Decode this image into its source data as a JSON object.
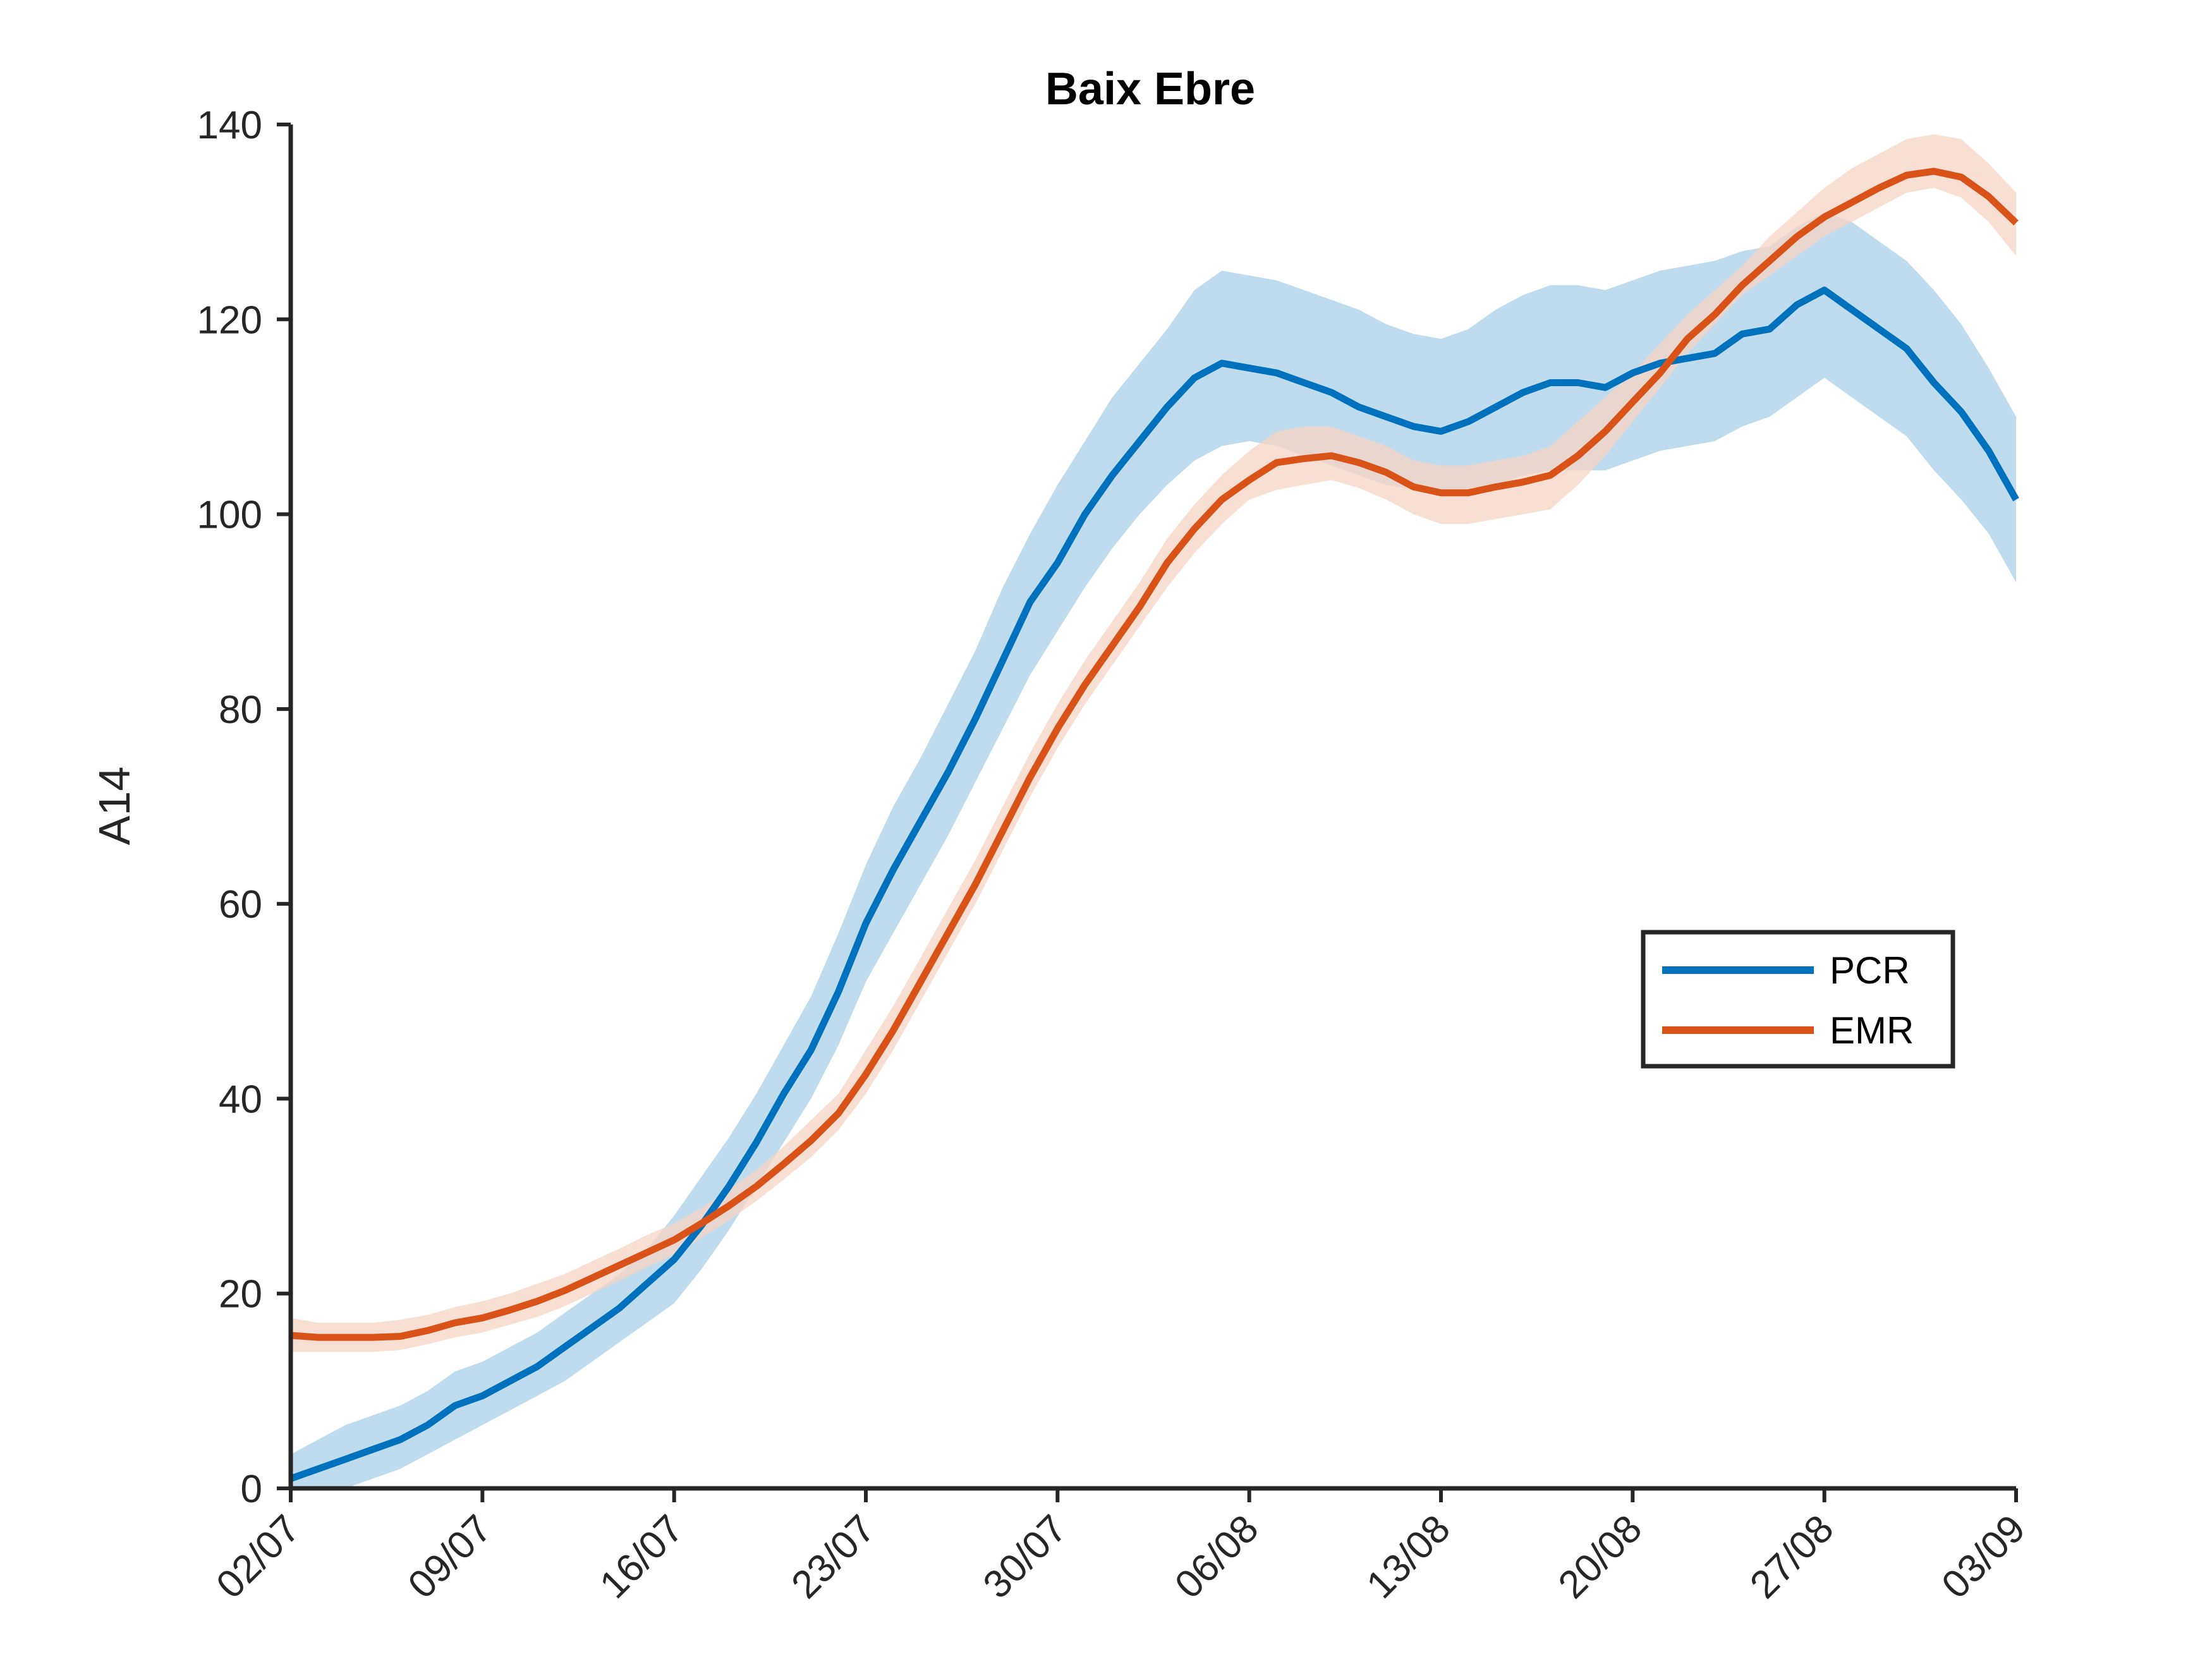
{
  "chart_data": {
    "type": "line",
    "title": "Baix Ebre",
    "xlabel": "",
    "ylabel": "A14",
    "x_tick_labels": [
      "02/07",
      "09/07",
      "16/07",
      "23/07",
      "30/07",
      "06/08",
      "13/08",
      "20/08",
      "27/08",
      "03/09"
    ],
    "x_ticks_day_offsets": [
      0,
      7,
      14,
      21,
      28,
      35,
      42,
      49,
      56,
      63
    ],
    "ylim": [
      0,
      140
    ],
    "y_ticks": [
      0,
      20,
      40,
      60,
      80,
      100,
      120,
      140
    ],
    "grid": false,
    "legend_position": "right",
    "series": [
      {
        "name": "PCR",
        "color": "#0072BD",
        "band_color": "#BCDAEE",
        "x": [
          0,
          1,
          2,
          3,
          4,
          5,
          6,
          7,
          8,
          9,
          10,
          11,
          12,
          13,
          14,
          15,
          16,
          17,
          18,
          19,
          20,
          21,
          22,
          23,
          24,
          25,
          26,
          27,
          28,
          29,
          30,
          31,
          32,
          33,
          34,
          35,
          36,
          37,
          38,
          39,
          40,
          41,
          42,
          43,
          44,
          45,
          46,
          47,
          48,
          49,
          50,
          51,
          52,
          53,
          54,
          55,
          56,
          57,
          58,
          59,
          60,
          61,
          62,
          63
        ],
        "values": [
          1,
          2,
          3,
          4,
          5,
          6.5,
          8.5,
          9.5,
          11,
          12.5,
          14.5,
          16.5,
          18.5,
          21,
          23.5,
          27,
          31,
          35.5,
          40.5,
          45,
          51,
          58,
          63.5,
          68.5,
          73.5,
          79,
          85,
          91,
          95,
          100,
          104,
          107.5,
          111,
          114,
          115.5,
          115,
          114.5,
          113.5,
          112.5,
          111,
          110,
          109,
          108.5,
          109.5,
          111,
          112.5,
          113.5,
          113.5,
          113,
          114.5,
          115.5,
          116,
          116.5,
          118.5,
          119,
          121.5,
          123,
          121,
          119,
          117,
          113.5,
          110.5,
          106.5,
          101.5
        ],
        "lower": [
          -1,
          -0.5,
          0,
          1,
          2,
          3.5,
          5,
          6.5,
          8,
          9.5,
          11,
          13,
          15,
          17,
          19,
          22.5,
          26.5,
          31,
          35.5,
          40,
          45.5,
          52,
          57,
          62,
          67,
          72.5,
          78,
          83.5,
          88,
          92.5,
          96.5,
          100,
          103,
          105.5,
          107,
          107.5,
          107,
          106,
          105,
          104,
          103,
          102.5,
          102,
          102,
          103,
          104,
          104.5,
          104.5,
          104.5,
          105.5,
          106.5,
          107,
          107.5,
          109,
          110,
          112,
          114,
          112,
          110,
          108,
          104.5,
          101.5,
          98,
          93
        ],
        "upper": [
          3.5,
          5,
          6.5,
          7.5,
          8.5,
          10,
          12,
          13,
          14.5,
          16,
          18,
          20,
          22,
          24.5,
          28,
          32,
          36,
          40.5,
          45.5,
          50.5,
          57,
          64,
          70,
          75,
          80.5,
          86,
          92.5,
          98,
          103,
          107.5,
          112,
          115.5,
          119,
          123,
          125,
          124.5,
          124,
          123,
          122,
          121,
          119.5,
          118.5,
          118,
          119,
          121,
          122.5,
          123.5,
          123.5,
          123,
          124,
          125,
          125.5,
          126,
          127,
          127.5,
          129.5,
          131,
          130,
          128,
          126,
          123,
          119.5,
          115,
          110
        ]
      },
      {
        "name": "EMR",
        "color": "#D95319",
        "band_color": "#F6D4C4",
        "x": [
          0,
          1,
          2,
          3,
          4,
          5,
          6,
          7,
          8,
          9,
          10,
          11,
          12,
          13,
          14,
          15,
          16,
          17,
          18,
          19,
          20,
          21,
          22,
          23,
          24,
          25,
          26,
          27,
          28,
          29,
          30,
          31,
          32,
          33,
          34,
          35,
          36,
          37,
          38,
          39,
          40,
          41,
          42,
          43,
          44,
          45,
          46,
          47,
          48,
          49,
          50,
          51,
          52,
          53,
          54,
          55,
          56,
          57,
          58,
          59,
          60,
          61,
          62,
          63
        ],
        "values": [
          15.7,
          15.5,
          15.5,
          15.5,
          15.6,
          16.2,
          17,
          17.5,
          18.3,
          19.2,
          20.3,
          21.6,
          22.9,
          24.2,
          25.5,
          27.2,
          29,
          31,
          33.3,
          35.7,
          38.5,
          42.5,
          47,
          52,
          57,
          62,
          67.5,
          73,
          78,
          82.5,
          86.5,
          90.5,
          95,
          98.5,
          101.5,
          103.5,
          105.3,
          105.7,
          106,
          105.3,
          104.3,
          102.8,
          102.2,
          102.2,
          102.8,
          103.3,
          104,
          106,
          108.5,
          111.5,
          114.5,
          118,
          120.5,
          123.5,
          126,
          128.5,
          130.5,
          132,
          133.5,
          134.8,
          135.2,
          134.6,
          132.6,
          129.9
        ],
        "lower": [
          14,
          14,
          14,
          14,
          14.2,
          14.8,
          15.5,
          16,
          16.8,
          17.6,
          18.7,
          20,
          21.3,
          22.7,
          24,
          25.7,
          27.5,
          29.5,
          31.7,
          34,
          36.8,
          40.5,
          45,
          50,
          55,
          60,
          65.5,
          71,
          76,
          80.5,
          84.5,
          88.5,
          92.5,
          96,
          99,
          101.5,
          102.5,
          103,
          103.5,
          102.7,
          101.5,
          100,
          99,
          99,
          99.5,
          100,
          100.5,
          103,
          106,
          109.5,
          113,
          116.5,
          119.5,
          122.5,
          124.5,
          126.5,
          128.5,
          130,
          131.5,
          133,
          133.5,
          132.5,
          130,
          126.5
        ],
        "upper": [
          17.5,
          17,
          17,
          17,
          17.3,
          17.8,
          18.6,
          19.2,
          20,
          21,
          22,
          23.3,
          24.6,
          26,
          27.2,
          28.8,
          30.7,
          32.7,
          35.1,
          37.8,
          40.5,
          45,
          49.5,
          54.5,
          59.5,
          64.5,
          70,
          75.5,
          80.5,
          85,
          89,
          93,
          97.5,
          101,
          104,
          106.5,
          108.5,
          109,
          109,
          108,
          107,
          105.5,
          105,
          105,
          105.5,
          106,
          107,
          109.5,
          112,
          114.5,
          117.5,
          120.5,
          123,
          125.5,
          128.5,
          131,
          133.5,
          135.5,
          137,
          138.5,
          139,
          138.5,
          136,
          133
        ]
      }
    ]
  }
}
